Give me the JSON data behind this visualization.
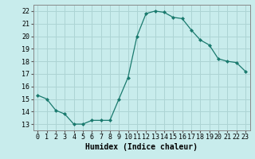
{
  "x": [
    0,
    1,
    2,
    3,
    4,
    5,
    6,
    7,
    8,
    9,
    10,
    11,
    12,
    13,
    14,
    15,
    16,
    17,
    18,
    19,
    20,
    21,
    22,
    23
  ],
  "y": [
    15.3,
    15.0,
    14.1,
    13.8,
    13.0,
    13.0,
    13.3,
    13.3,
    13.3,
    15.0,
    16.7,
    20.0,
    21.8,
    22.0,
    21.9,
    21.5,
    21.4,
    20.5,
    19.7,
    19.3,
    18.2,
    18.0,
    17.9,
    17.2
  ],
  "line_color": "#1a7a6e",
  "marker": "D",
  "marker_size": 2,
  "bg_color": "#c8ecec",
  "grid_color": "#add4d4",
  "xlabel": "Humidex (Indice chaleur)",
  "xlabel_fontsize": 7,
  "tick_fontsize": 6,
  "xlim": [
    -0.5,
    23.5
  ],
  "ylim": [
    12.5,
    22.5
  ],
  "yticks": [
    13,
    14,
    15,
    16,
    17,
    18,
    19,
    20,
    21,
    22
  ],
  "xtick_labels": [
    "0",
    "1",
    "2",
    "3",
    "4",
    "5",
    "6",
    "7",
    "8",
    "9",
    "10",
    "11",
    "12",
    "13",
    "14",
    "15",
    "16",
    "17",
    "18",
    "19",
    "20",
    "21",
    "22",
    "23"
  ]
}
